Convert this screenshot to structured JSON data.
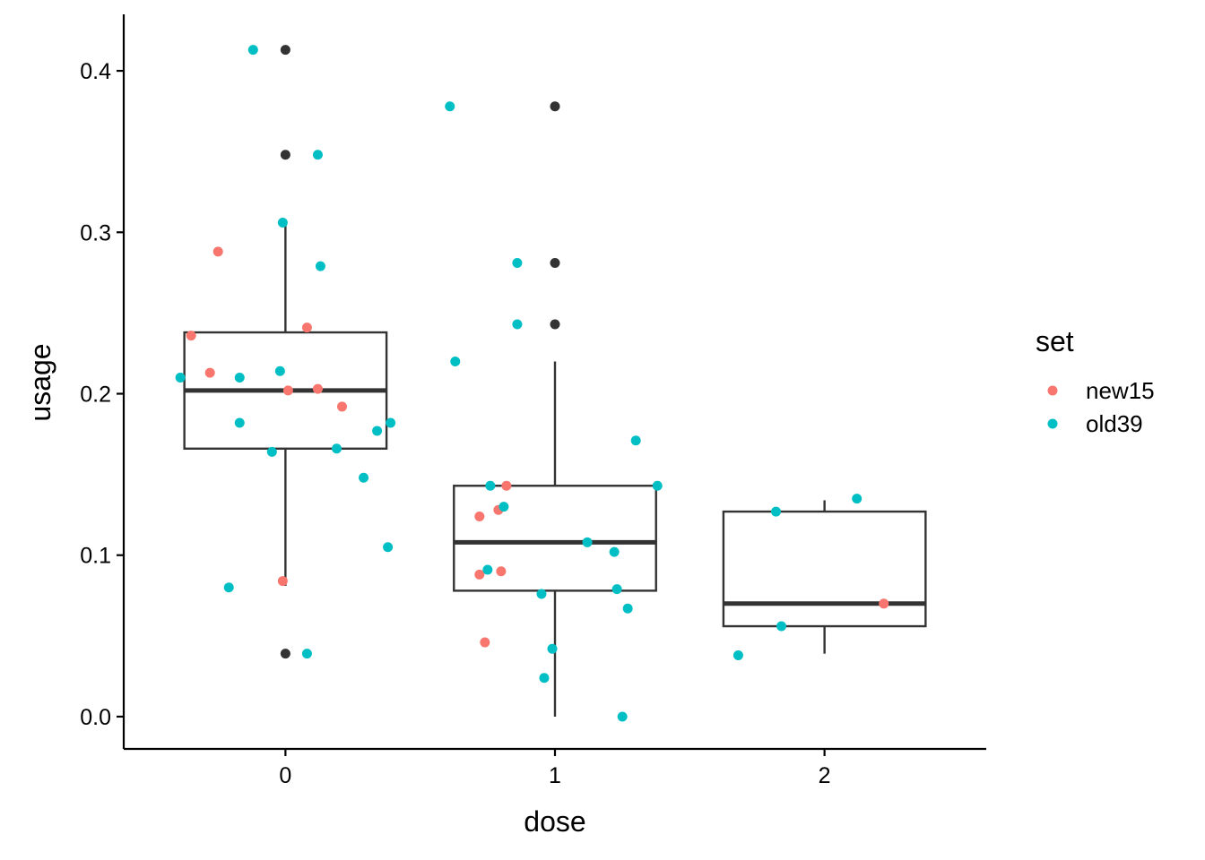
{
  "chart_data": {
    "type": "boxplot",
    "title": "",
    "xlabel": "dose",
    "ylabel": "usage",
    "x_categories": [
      "0",
      "1",
      "2"
    ],
    "x_range": [
      -0.6,
      2.6
    ],
    "ylim": [
      -0.02,
      0.435
    ],
    "y_ticks": [
      0.0,
      0.1,
      0.2,
      0.3,
      0.4
    ],
    "y_tick_labels": [
      "0.0",
      "0.1",
      "0.2",
      "0.3",
      "0.4"
    ],
    "legend": {
      "title": "set",
      "position": "right",
      "entries": [
        {
          "label": "new15",
          "color": "#F8766D"
        },
        {
          "label": "old39",
          "color": "#00BFC4"
        }
      ]
    },
    "outlier_color": "#333333",
    "boxes": [
      {
        "x": "0",
        "q1": 0.166,
        "median": 0.202,
        "q3": 0.238,
        "whisker_low": 0.081,
        "whisker_high": 0.306,
        "outliers": [
          0.413,
          0.348,
          0.039
        ]
      },
      {
        "x": "1",
        "q1": 0.078,
        "median": 0.108,
        "q3": 0.143,
        "whisker_low": 0.0,
        "whisker_high": 0.22,
        "outliers": [
          0.378,
          0.281,
          0.243
        ]
      },
      {
        "x": "2",
        "q1": 0.056,
        "median": 0.07,
        "q3": 0.127,
        "whisker_low": 0.039,
        "whisker_high": 0.134,
        "outliers": []
      }
    ],
    "series": [
      {
        "name": "new15",
        "color": "#F8766D",
        "points": [
          {
            "x": -0.25,
            "y": 0.288
          },
          {
            "x": -0.35,
            "y": 0.236
          },
          {
            "x": -0.28,
            "y": 0.213
          },
          {
            "x": 0.08,
            "y": 0.241
          },
          {
            "x": 0.01,
            "y": 0.202
          },
          {
            "x": 0.12,
            "y": 0.203
          },
          {
            "x": 0.21,
            "y": 0.192
          },
          {
            "x": -0.01,
            "y": 0.084
          },
          {
            "x": 0.82,
            "y": 0.143
          },
          {
            "x": 0.79,
            "y": 0.128
          },
          {
            "x": 0.72,
            "y": 0.124
          },
          {
            "x": 0.8,
            "y": 0.09
          },
          {
            "x": 0.72,
            "y": 0.088
          },
          {
            "x": 0.74,
            "y": 0.046
          },
          {
            "x": 2.22,
            "y": 0.07
          }
        ]
      },
      {
        "name": "old39",
        "color": "#00BFC4",
        "points": [
          {
            "x": -0.12,
            "y": 0.413
          },
          {
            "x": 0.12,
            "y": 0.348
          },
          {
            "x": -0.01,
            "y": 0.306
          },
          {
            "x": 0.13,
            "y": 0.279
          },
          {
            "x": -0.39,
            "y": 0.21
          },
          {
            "x": -0.17,
            "y": 0.21
          },
          {
            "x": -0.02,
            "y": 0.214
          },
          {
            "x": -0.17,
            "y": 0.182
          },
          {
            "x": 0.39,
            "y": 0.182
          },
          {
            "x": 0.34,
            "y": 0.177
          },
          {
            "x": 0.19,
            "y": 0.166
          },
          {
            "x": -0.05,
            "y": 0.164
          },
          {
            "x": 0.29,
            "y": 0.148
          },
          {
            "x": 0.38,
            "y": 0.105
          },
          {
            "x": -0.21,
            "y": 0.08
          },
          {
            "x": 0.08,
            "y": 0.039
          },
          {
            "x": 0.61,
            "y": 0.378
          },
          {
            "x": 0.86,
            "y": 0.281
          },
          {
            "x": 0.86,
            "y": 0.243
          },
          {
            "x": 0.63,
            "y": 0.22
          },
          {
            "x": 1.3,
            "y": 0.171
          },
          {
            "x": 0.76,
            "y": 0.143
          },
          {
            "x": 1.38,
            "y": 0.143
          },
          {
            "x": 0.81,
            "y": 0.13
          },
          {
            "x": 1.12,
            "y": 0.108
          },
          {
            "x": 1.22,
            "y": 0.102
          },
          {
            "x": 0.75,
            "y": 0.091
          },
          {
            "x": 1.23,
            "y": 0.079
          },
          {
            "x": 0.95,
            "y": 0.076
          },
          {
            "x": 1.27,
            "y": 0.067
          },
          {
            "x": 0.99,
            "y": 0.042
          },
          {
            "x": 0.96,
            "y": 0.024
          },
          {
            "x": 1.25,
            "y": 0.0
          },
          {
            "x": 1.82,
            "y": 0.127
          },
          {
            "x": 2.12,
            "y": 0.135
          },
          {
            "x": 1.84,
            "y": 0.056
          },
          {
            "x": 1.68,
            "y": 0.038
          }
        ]
      }
    ]
  }
}
